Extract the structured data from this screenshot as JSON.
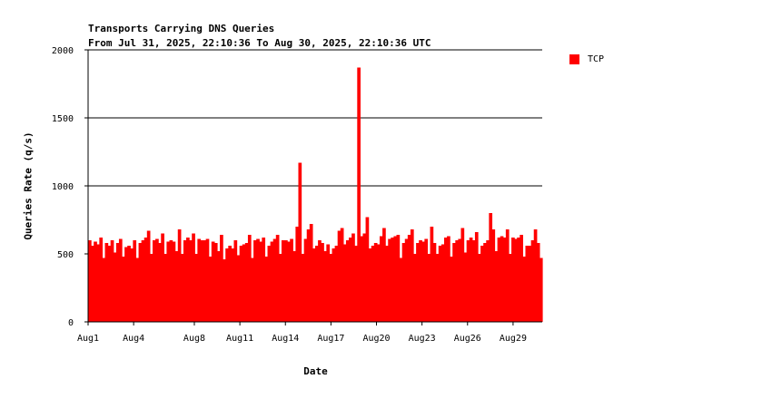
{
  "chart_data": {
    "type": "bar",
    "title": "Transports Carrying DNS Queries",
    "subtitle": "From Jul 31, 2025, 22:10:36 To Aug 30, 2025, 22:10:36 UTC",
    "xlabel": "Date",
    "ylabel": "Queries Rate (q/s)",
    "ylim": [
      0,
      2000
    ],
    "y_ticks": [
      0,
      500,
      1000,
      1500,
      2000
    ],
    "gridlines": "horizontal at 1000, 1500, 2000",
    "x_ticks": [
      {
        "label": "Aug1",
        "day": 1
      },
      {
        "label": "Aug4",
        "day": 4
      },
      {
        "label": "Aug8",
        "day": 8
      },
      {
        "label": "Aug11",
        "day": 11
      },
      {
        "label": "Aug14",
        "day": 14
      },
      {
        "label": "Aug17",
        "day": 17
      },
      {
        "label": "Aug20",
        "day": 20
      },
      {
        "label": "Aug23",
        "day": 23
      },
      {
        "label": "Aug26",
        "day": 26
      },
      {
        "label": "Aug29",
        "day": 29
      }
    ],
    "x_range_days": [
      1,
      30.92
    ],
    "legend": {
      "position": "right"
    },
    "series": [
      {
        "name": "TCP",
        "color": "#ff0000",
        "samples_per_day": 6,
        "values": [
          600,
          560,
          590,
          570,
          620,
          470,
          580,
          560,
          600,
          510,
          580,
          610,
          480,
          550,
          560,
          540,
          600,
          470,
          580,
          600,
          620,
          670,
          500,
          600,
          610,
          580,
          650,
          500,
          590,
          600,
          590,
          520,
          680,
          500,
          600,
          620,
          600,
          650,
          500,
          610,
          600,
          600,
          610,
          480,
          590,
          580,
          520,
          640,
          460,
          540,
          560,
          540,
          600,
          490,
          560,
          570,
          580,
          640,
          470,
          600,
          610,
          590,
          620,
          480,
          560,
          590,
          610,
          640,
          500,
          600,
          600,
          590,
          610,
          520,
          700,
          1170,
          500,
          610,
          680,
          720,
          540,
          560,
          600,
          580,
          520,
          570,
          500,
          540,
          560,
          670,
          690,
          570,
          600,
          620,
          650,
          560,
          1870,
          630,
          650,
          770,
          540,
          560,
          580,
          570,
          630,
          690,
          560,
          610,
          620,
          630,
          640,
          470,
          580,
          610,
          640,
          680,
          500,
          580,
          600,
          590,
          610,
          500,
          700,
          580,
          500,
          560,
          570,
          620,
          630,
          480,
          580,
          600,
          610,
          690,
          510,
          600,
          620,
          600,
          660,
          500,
          560,
          580,
          600,
          800,
          680,
          520,
          620,
          630,
          620,
          680,
          500,
          620,
          610,
          620,
          640,
          480,
          560,
          560,
          600,
          680,
          580,
          470
        ]
      }
    ]
  }
}
